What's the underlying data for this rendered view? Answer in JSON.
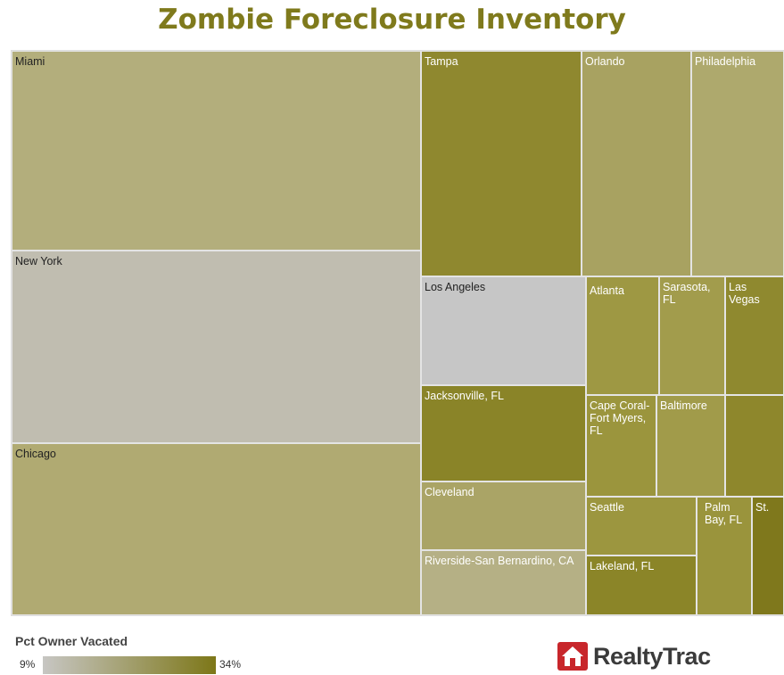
{
  "title": "Zombie Foreclosure Inventory",
  "tiles": [
    "Miami",
    "New York",
    "Chicago",
    "Tampa",
    "Orlando",
    "Philadelphia",
    "Los Angeles",
    "Jacksonville, FL",
    "Cleveland",
    "Riverside-San Bernardino, CA",
    "Atlanta",
    "Sarasota, FL",
    "Las Vegas",
    "Cape Coral-Fort Myers, FL",
    "Baltimore",
    "Seattle",
    "Lakeland, FL",
    "Palm Bay, FL",
    "St."
  ],
  "legend": {
    "title": "Pct Owner Vacated",
    "min_label": "9%",
    "max_label": "34%"
  },
  "logo": "RealtyTrac"
}
